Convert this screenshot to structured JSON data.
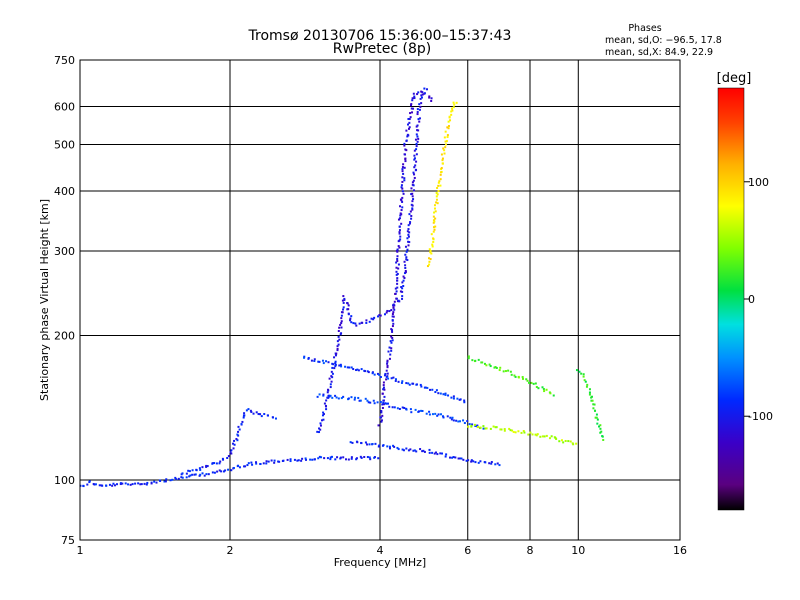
{
  "chart_data": {
    "type": "scatter",
    "title": "Tromsø 20130706 15:36:00–15:37:43",
    "subtitle": "RwPretec (8p)",
    "xlabel": "Frequency [MHz]",
    "ylabel": "Stationary phase Virtual Height [km]",
    "x_scale": "log",
    "y_scale": "log",
    "xlim": [
      1,
      16
    ],
    "ylim": [
      75,
      750
    ],
    "x_ticks": [
      1,
      2,
      4,
      6,
      8,
      10,
      16
    ],
    "x_ticklabels": [
      "1",
      "2",
      "4",
      "6",
      "8",
      "10",
      "16"
    ],
    "y_ticks": [
      75,
      100,
      200,
      300,
      400,
      500,
      600,
      750
    ],
    "y_ticklabels": [
      "75",
      "100",
      "200",
      "300",
      "400",
      "500",
      "600",
      "750"
    ],
    "grid": true,
    "stats": {
      "heading": "Phases",
      "line1": "mean, sd,O: −96.5, 17.8",
      "line2": "mean, sd,X:  84.9, 22.9"
    },
    "colorbar": {
      "label": "[deg]",
      "range": [
        -180,
        180
      ],
      "ticks": [
        100,
        0,
        -100
      ],
      "ticklabels": [
        "100",
        "0",
        "-100"
      ]
    },
    "traces": [
      {
        "phase": -100,
        "points": [
          [
            1.0,
            97
          ],
          [
            1.05,
            99
          ],
          [
            1.1,
            97
          ],
          [
            1.2,
            98
          ],
          [
            1.3,
            98
          ],
          [
            1.4,
            99
          ],
          [
            1.5,
            100
          ],
          [
            1.6,
            101
          ],
          [
            1.7,
            102
          ],
          [
            1.8,
            103
          ],
          [
            1.9,
            104
          ],
          [
            2.0,
            105
          ],
          [
            2.1,
            107
          ],
          [
            2.2,
            108
          ],
          [
            2.4,
            109
          ],
          [
            2.6,
            110
          ],
          [
            2.8,
            110
          ],
          [
            3.0,
            111
          ],
          [
            3.5,
            111
          ],
          [
            4.0,
            111
          ]
        ]
      },
      {
        "phase": -100,
        "points": [
          [
            1.6,
            103
          ],
          [
            1.7,
            105
          ],
          [
            1.8,
            107
          ],
          [
            1.9,
            109
          ],
          [
            2.0,
            113
          ],
          [
            2.05,
            120
          ],
          [
            2.1,
            130
          ],
          [
            2.15,
            140
          ],
          [
            2.3,
            137
          ],
          [
            2.5,
            135
          ]
        ]
      },
      {
        "phase": -110,
        "points": [
          [
            3.0,
            125
          ],
          [
            3.1,
            140
          ],
          [
            3.2,
            165
          ],
          [
            3.3,
            190
          ],
          [
            3.35,
            220
          ],
          [
            3.4,
            240
          ],
          [
            3.45,
            230
          ],
          [
            3.5,
            215
          ],
          [
            3.6,
            210
          ],
          [
            3.8,
            215
          ],
          [
            4.0,
            220
          ],
          [
            4.2,
            225
          ],
          [
            4.4,
            240
          ],
          [
            4.5,
            280
          ],
          [
            4.6,
            350
          ],
          [
            4.7,
            450
          ],
          [
            4.8,
            600
          ],
          [
            4.9,
            650
          ],
          [
            5.0,
            650
          ]
        ]
      },
      {
        "phase": -115,
        "points": [
          [
            4.0,
            130
          ],
          [
            4.1,
            160
          ],
          [
            4.2,
            190
          ],
          [
            4.3,
            240
          ],
          [
            4.35,
            300
          ],
          [
            4.4,
            350
          ],
          [
            4.45,
            420
          ],
          [
            4.5,
            500
          ],
          [
            4.6,
            580
          ],
          [
            4.7,
            640
          ],
          [
            4.9,
            640
          ],
          [
            5.0,
            630
          ],
          [
            5.1,
            610
          ]
        ]
      },
      {
        "phase": 90,
        "points": [
          [
            5.0,
            280
          ],
          [
            5.1,
            320
          ],
          [
            5.2,
            380
          ],
          [
            5.3,
            440
          ],
          [
            5.4,
            500
          ],
          [
            5.5,
            560
          ],
          [
            5.6,
            600
          ],
          [
            5.7,
            620
          ]
        ]
      },
      {
        "phase": -95,
        "points": [
          [
            2.8,
            180
          ],
          [
            3.2,
            175
          ],
          [
            3.6,
            170
          ],
          [
            4.0,
            165
          ],
          [
            4.5,
            160
          ],
          [
            5.0,
            155
          ],
          [
            5.5,
            150
          ],
          [
            6.0,
            145
          ]
        ]
      },
      {
        "phase": -90,
        "points": [
          [
            3.0,
            150
          ],
          [
            3.5,
            148
          ],
          [
            4.0,
            145
          ],
          [
            4.5,
            140
          ],
          [
            5.0,
            138
          ],
          [
            5.5,
            135
          ],
          [
            6.0,
            132
          ],
          [
            6.5,
            128
          ]
        ]
      },
      {
        "phase": -100,
        "points": [
          [
            3.5,
            120
          ],
          [
            4.0,
            118
          ],
          [
            4.5,
            116
          ],
          [
            5.0,
            115
          ],
          [
            5.5,
            112
          ],
          [
            6.0,
            110
          ],
          [
            7.0,
            108
          ]
        ]
      },
      {
        "phase": 30,
        "points": [
          [
            6.0,
            180
          ],
          [
            6.5,
            175
          ],
          [
            7.0,
            170
          ],
          [
            7.5,
            165
          ],
          [
            8.0,
            160
          ],
          [
            8.5,
            155
          ],
          [
            9.0,
            150
          ]
        ]
      },
      {
        "phase": 60,
        "points": [
          [
            6.0,
            130
          ],
          [
            7.0,
            128
          ],
          [
            8.0,
            125
          ],
          [
            9.0,
            122
          ],
          [
            10.0,
            118
          ]
        ]
      },
      {
        "phase": 20,
        "points": [
          [
            10.0,
            170
          ],
          [
            10.2,
            165
          ],
          [
            10.4,
            160
          ],
          [
            10.6,
            150
          ],
          [
            10.8,
            140
          ],
          [
            11.0,
            130
          ],
          [
            11.2,
            120
          ]
        ]
      }
    ]
  }
}
